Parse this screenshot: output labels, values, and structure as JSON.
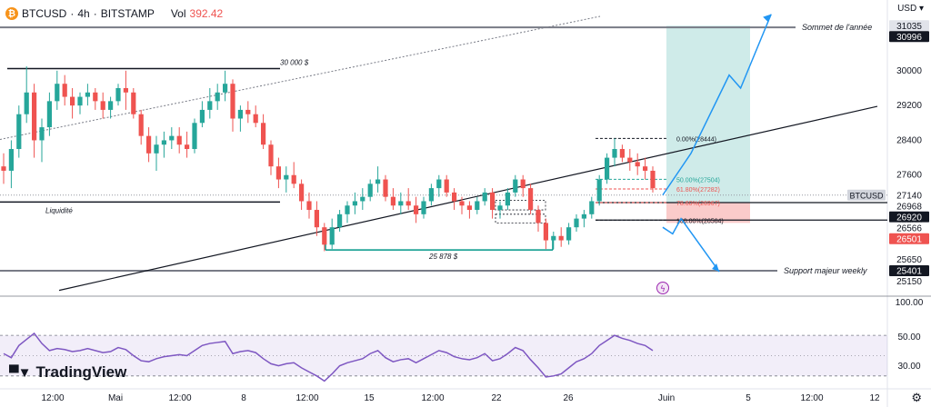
{
  "header": {
    "symbol": "BTCUSD",
    "interval": "4h",
    "exchange": "BITSTAMP",
    "separator": "·",
    "coin_icon": "bitcoin-icon",
    "volume_label": "Vol",
    "volume_value": "392.42"
  },
  "currency_label": "USD",
  "logo_text": "TradingView",
  "colors": {
    "up": "#26a69a",
    "down": "#ef5350",
    "rsi_line": "#7e57c2",
    "rsi_band": "rgba(126,87,194,0.10)",
    "profit_zone": "rgba(38,166,154,0.22)",
    "loss_zone": "rgba(239,83,80,0.30)",
    "arrow": "#2196f3",
    "measure": "#009688"
  },
  "chart_data": [
    {
      "type": "candlestick",
      "title": "BTCUSD · 4h · BITSTAMP",
      "x_labels": [
        "12:00",
        "Mai",
        "12:00",
        "8",
        "12:00",
        "15",
        "12:00",
        "22",
        "26",
        "Juin",
        "5",
        "12:00",
        "12"
      ],
      "y_ticks": [
        25150,
        25650,
        26500,
        27600,
        28400,
        29200,
        30000
      ],
      "ylim": [
        24900,
        31250
      ],
      "series": [
        {
          "name": "BTCUSD",
          "values": [
            [
              27800,
              28100,
              27400,
              27700
            ],
            [
              27700,
              28400,
              27300,
              28200
            ],
            [
              28200,
              29200,
              28000,
              29000
            ],
            [
              29000,
              30100,
              28800,
              29500
            ],
            [
              29500,
              29700,
              28000,
              28400
            ],
            [
              28400,
              28900,
              27900,
              28700
            ],
            [
              28700,
              29500,
              28500,
              29300
            ],
            [
              29300,
              30000,
              29100,
              29700
            ],
            [
              29700,
              29900,
              29200,
              29400
            ],
            [
              29400,
              29600,
              28900,
              29200
            ],
            [
              29200,
              29500,
              29000,
              29400
            ],
            [
              29400,
              29700,
              29200,
              29500
            ],
            [
              29500,
              29600,
              29100,
              29300
            ],
            [
              29300,
              29500,
              28900,
              29100
            ],
            [
              29100,
              29400,
              28900,
              29300
            ],
            [
              29300,
              29700,
              29200,
              29600
            ],
            [
              29600,
              30000,
              29100,
              29500
            ],
            [
              29500,
              29600,
              28900,
              29000
            ],
            [
              29000,
              29100,
              28300,
              28500
            ],
            [
              28500,
              28700,
              27900,
              28100
            ],
            [
              28100,
              28500,
              27700,
              28300
            ],
            [
              28300,
              28600,
              28000,
              28400
            ],
            [
              28400,
              28700,
              28200,
              28500
            ],
            [
              28500,
              28700,
              28100,
              28300
            ],
            [
              28300,
              28600,
              28000,
              28200
            ],
            [
              28200,
              28900,
              28100,
              28800
            ],
            [
              28800,
              29300,
              28700,
              29100
            ],
            [
              29100,
              29600,
              28900,
              29300
            ],
            [
              29300,
              29700,
              29100,
              29500
            ],
            [
              29500,
              30000,
              29300,
              29700
            ],
            [
              29700,
              29800,
              28600,
              28900
            ],
            [
              28900,
              29200,
              28600,
              29100
            ],
            [
              29100,
              29300,
              28800,
              29000
            ],
            [
              29000,
              29200,
              28700,
              28800
            ],
            [
              28800,
              29000,
              28200,
              28300
            ],
            [
              28300,
              28400,
              27600,
              27800
            ],
            [
              27800,
              28000,
              27300,
              27500
            ],
            [
              27500,
              27800,
              27200,
              27600
            ],
            [
              27600,
              27900,
              27300,
              27400
            ],
            [
              27400,
              27500,
              26800,
              27000
            ],
            [
              27000,
              27200,
              26600,
              26800
            ],
            [
              26800,
              27000,
              26200,
              26400
            ],
            [
              26400,
              26500,
              25850,
              26000
            ],
            [
              26000,
              26600,
              25900,
              26400
            ],
            [
              26400,
              26800,
              26300,
              26700
            ],
            [
              26700,
              27000,
              26500,
              26900
            ],
            [
              26900,
              27200,
              26700,
              27000
            ],
            [
              27000,
              27300,
              26800,
              27100
            ],
            [
              27100,
              27500,
              27000,
              27400
            ],
            [
              27400,
              27800,
              27200,
              27500
            ],
            [
              27500,
              27600,
              27000,
              27100
            ],
            [
              27100,
              27300,
              26800,
              26900
            ],
            [
              26900,
              27200,
              26700,
              27000
            ],
            [
              27000,
              27300,
              26800,
              26900
            ],
            [
              26900,
              27100,
              26500,
              26700
            ],
            [
              26700,
              27100,
              26600,
              27000
            ],
            [
              27000,
              27400,
              26900,
              27300
            ],
            [
              27300,
              27600,
              27100,
              27500
            ],
            [
              27500,
              27600,
              27100,
              27200
            ],
            [
              27200,
              27300,
              26800,
              27000
            ],
            [
              27000,
              27100,
              26700,
              26900
            ],
            [
              26900,
              27000,
              26600,
              26800
            ],
            [
              26800,
              27100,
              26700,
              27000
            ],
            [
              27000,
              27300,
              26900,
              27200
            ],
            [
              27200,
              27300,
              26600,
              26800
            ],
            [
              26800,
              27000,
              26600,
              26900
            ],
            [
              26900,
              27300,
              26800,
              27200
            ],
            [
              27200,
              27600,
              27100,
              27500
            ],
            [
              27500,
              27600,
              27100,
              27300
            ],
            [
              27300,
              27400,
              26700,
              26800
            ],
            [
              26800,
              26900,
              26300,
              26500
            ],
            [
              26500,
              26600,
              25900,
              26100
            ],
            [
              26100,
              26300,
              25900,
              26200
            ],
            [
              26200,
              26400,
              25950,
              26100
            ],
            [
              26100,
              26500,
              26000,
              26400
            ],
            [
              26400,
              26700,
              26300,
              26600
            ],
            [
              26600,
              26800,
              26400,
              26700
            ],
            [
              26700,
              27100,
              26600,
              27000
            ],
            [
              27000,
              27600,
              26900,
              27500
            ],
            [
              27500,
              28100,
              27400,
              28000
            ],
            [
              28000,
              28444,
              27800,
              28200
            ],
            [
              28200,
              28300,
              27900,
              28000
            ],
            [
              28000,
              28200,
              27700,
              27900
            ],
            [
              27900,
              28100,
              27600,
              27800
            ],
            [
              27800,
              28000,
              27500,
              27700
            ],
            [
              27700,
              27800,
              27200,
              27300
            ]
          ]
        }
      ],
      "annotations": [
        {
          "text": "30 000 $"
        },
        {
          "text": "Liquidité"
        },
        {
          "text": "25 878 $"
        },
        {
          "text": "Sommet de l'année"
        },
        {
          "text": "Support majeur weekly"
        },
        {
          "text": "0.00%(28444)",
          "value": 28444
        },
        {
          "text": "50.00%(27504)",
          "value": 27504
        },
        {
          "text": "61.80%(27282)",
          "value": 27282
        },
        {
          "text": "78.60%(26967)",
          "value": 26967
        },
        {
          "text": "100.00%(26564)",
          "value": 26564
        }
      ],
      "price_tags": [
        {
          "text": "31035",
          "value": 31035,
          "bg": "#e1e3ea",
          "fg": "#131722"
        },
        {
          "text": "30996",
          "value": 30996,
          "bg": "#131722",
          "fg": "#ffffff"
        },
        {
          "text": "BTCUSD",
          "value": 27140,
          "bg": "#d1d4dc",
          "fg": "#131722"
        },
        {
          "text": "27140",
          "value": 27140,
          "bg": "#ffffff",
          "fg": "#131722"
        },
        {
          "text": "26968",
          "value": 26968,
          "bg": "#ffffff",
          "fg": "#131722"
        },
        {
          "text": "26920",
          "value": 26920,
          "bg": "#131722",
          "fg": "#ffffff"
        },
        {
          "text": "26566",
          "value": 26566,
          "bg": "#ffffff",
          "fg": "#131722"
        },
        {
          "text": "26501",
          "value": 26501,
          "bg": "#ef5350",
          "fg": "#ffffff"
        },
        {
          "text": "25401",
          "value": 25401,
          "bg": "#131722",
          "fg": "#ffffff"
        }
      ]
    },
    {
      "type": "line",
      "title": "",
      "y_ticks": [
        100.0,
        50.0,
        30.0
      ],
      "bands": [
        70,
        30
      ],
      "series": [
        {
          "name": "",
          "values": [
            52,
            48,
            60,
            66,
            72,
            62,
            55,
            57,
            56,
            54,
            55,
            57,
            55,
            53,
            54,
            58,
            56,
            50,
            45,
            44,
            47,
            49,
            50,
            51,
            50,
            55,
            60,
            62,
            63,
            64,
            52,
            54,
            55,
            53,
            47,
            42,
            40,
            42,
            43,
            38,
            34,
            30,
            25,
            32,
            40,
            43,
            45,
            47,
            52,
            55,
            48,
            44,
            46,
            47,
            43,
            47,
            51,
            55,
            53,
            49,
            47,
            46,
            48,
            52,
            45,
            47,
            52,
            58,
            55,
            46,
            38,
            29,
            30,
            32,
            38,
            44,
            47,
            52,
            60,
            65,
            70,
            67,
            65,
            62,
            60,
            55
          ]
        }
      ]
    }
  ]
}
